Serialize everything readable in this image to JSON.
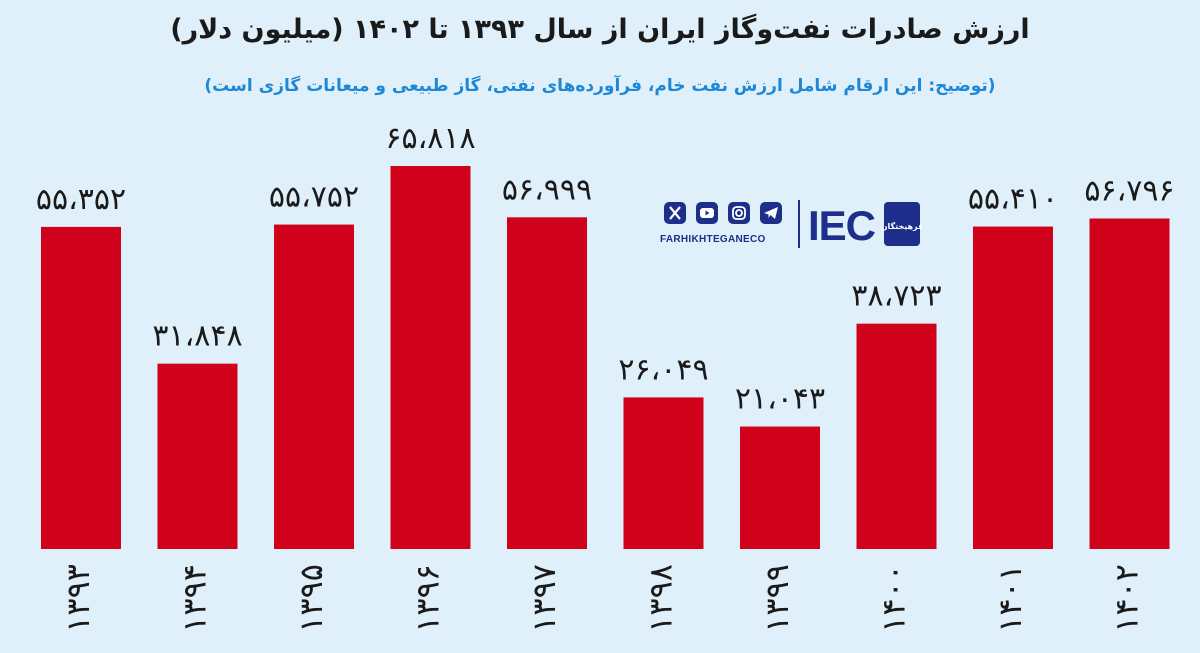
{
  "title": "ارزش صادرات نفت‌وگاز ایران از سال ۱۳۹۳ تا ۱۴۰۲ (میلیون دلار)",
  "subtitle": "(توضیح: این ارقام شامل ارزش نفت خام، فرآورده‌های نفتی، گاز طبیعی و میعانات گازی است)",
  "logo": {
    "brand_text": "FARHIKHTEGANECO",
    "mark_text": "IEC",
    "seal_text": "فرهیختگان",
    "icons": [
      "x-icon",
      "youtube-icon",
      "instagram-icon",
      "telegram-icon"
    ]
  },
  "colors": {
    "bar": "#d0021b",
    "background": "#dff0fa",
    "subtitle": "#1e88d6",
    "brand": "#1d2f8a"
  },
  "chart_data": {
    "type": "bar",
    "categories": [
      "۱۳۹۳",
      "۱۳۹۴",
      "۱۳۹۵",
      "۱۳۹۶",
      "۱۳۹۷",
      "۱۳۹۸",
      "۱۳۹۹",
      "۱۴۰۰",
      "۱۴۰۱",
      "۱۴۰۲"
    ],
    "values": [
      55352,
      31848,
      55752,
      65818,
      56999,
      26049,
      21043,
      38723,
      55410,
      56796
    ],
    "value_labels": [
      "۵۵،۳۵۲",
      "۳۱،۸۴۸",
      "۵۵،۷۵۲",
      "۶۵،۸۱۸",
      "۵۶،۹۹۹",
      "۲۶،۰۴۹",
      "۲۱،۰۴۳",
      "۳۸،۷۲۳",
      "۵۵،۴۱۰",
      "۵۶،۷۹۶"
    ],
    "title": "ارزش صادرات نفت‌وگاز ایران از سال ۱۳۹۳ تا ۱۴۰۲ (میلیون دلار)",
    "xlabel": "",
    "ylabel": "",
    "ylim": [
      0,
      70000
    ],
    "grid": false,
    "legend": "none"
  }
}
